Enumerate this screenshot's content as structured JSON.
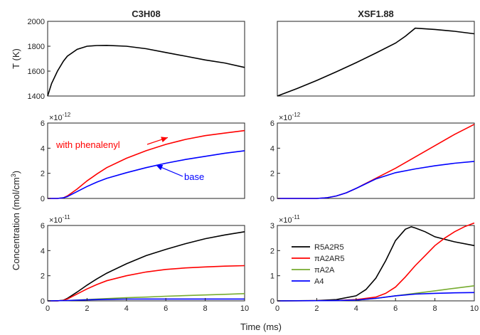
{
  "chart_data": [
    {
      "type": "line",
      "title": "C3H08",
      "ylabel": "T (K)",
      "xlim": [
        0,
        10
      ],
      "ylim": [
        1400,
        2000
      ],
      "yticks": [
        1400,
        1600,
        1800,
        2000
      ],
      "grid": false,
      "series": [
        {
          "color": "#000000",
          "x": [
            0,
            0.2,
            0.5,
            0.8,
            1,
            1.5,
            2,
            2.5,
            3,
            4,
            5,
            6,
            7,
            8,
            9,
            10
          ],
          "y": [
            1400,
            1500,
            1600,
            1680,
            1720,
            1775,
            1800,
            1806,
            1807,
            1800,
            1780,
            1750,
            1720,
            1690,
            1665,
            1630
          ]
        }
      ]
    },
    {
      "type": "line",
      "title": "XSF1.88",
      "ylabel": "",
      "xlim": [
        0,
        10
      ],
      "ylim": [
        1400,
        2000
      ],
      "grid": false,
      "series": [
        {
          "color": "#000000",
          "x": [
            0,
            1,
            2,
            3,
            4,
            5,
            6,
            6.5,
            7,
            8,
            9,
            10
          ],
          "y": [
            1400,
            1460,
            1525,
            1595,
            1668,
            1745,
            1825,
            1880,
            1945,
            1935,
            1920,
            1900
          ]
        }
      ]
    },
    {
      "type": "line",
      "ylabel": "",
      "exponent": "-12",
      "xlim": [
        0,
        10
      ],
      "ylim": [
        0,
        6
      ],
      "yticks": [
        0,
        2,
        4,
        6
      ],
      "grid": false,
      "annotations": [
        {
          "text": "with phenalenyl",
          "color": "#ff0000",
          "arrow_to": [
            6.1,
            4.85
          ]
        },
        {
          "text": "base",
          "color": "#0000ff",
          "arrow_to": [
            5.5,
            2.65
          ]
        }
      ],
      "series": [
        {
          "color": "#ff0000",
          "x": [
            0,
            0.5,
            0.8,
            1,
            1.5,
            2,
            2.5,
            3,
            4,
            5,
            6,
            7,
            8,
            9,
            10
          ],
          "y": [
            0,
            0,
            0.05,
            0.2,
            0.75,
            1.4,
            1.95,
            2.45,
            3.2,
            3.8,
            4.3,
            4.7,
            5.0,
            5.2,
            5.4
          ]
        },
        {
          "color": "#0000ff",
          "x": [
            0,
            0.5,
            0.8,
            1,
            1.5,
            2,
            2.5,
            3,
            4,
            5,
            6,
            7,
            8,
            9,
            10
          ],
          "y": [
            0,
            0,
            0.05,
            0.15,
            0.55,
            0.95,
            1.3,
            1.6,
            2.05,
            2.45,
            2.8,
            3.1,
            3.35,
            3.6,
            3.8
          ]
        }
      ]
    },
    {
      "type": "line",
      "ylabel": "",
      "exponent": "-12",
      "xlim": [
        0,
        10
      ],
      "ylim": [
        0,
        6
      ],
      "yticks": [
        0,
        2,
        4,
        6
      ],
      "grid": false,
      "series": [
        {
          "color": "#ff0000",
          "x": [
            0,
            2,
            2.5,
            3,
            3.5,
            4,
            5,
            6,
            7,
            8,
            9,
            10
          ],
          "y": [
            0,
            0,
            0.05,
            0.2,
            0.45,
            0.8,
            1.6,
            2.4,
            3.3,
            4.2,
            5.1,
            5.9
          ]
        },
        {
          "color": "#0000ff",
          "x": [
            0,
            2,
            2.5,
            3,
            3.5,
            4,
            5,
            6,
            7,
            8,
            9,
            10
          ],
          "y": [
            0,
            0,
            0.05,
            0.2,
            0.45,
            0.8,
            1.55,
            2.05,
            2.35,
            2.6,
            2.8,
            2.95
          ]
        }
      ]
    },
    {
      "type": "line",
      "ylabel": "",
      "exponent": "-11",
      "xlim": [
        0,
        10
      ],
      "xticks": [
        0,
        2,
        4,
        6,
        8,
        10
      ],
      "ylim": [
        0,
        6
      ],
      "yticks": [
        0,
        2,
        4,
        6
      ],
      "grid": false,
      "series": [
        {
          "color": "#000000",
          "x": [
            0,
            0.5,
            0.8,
            1,
            1.5,
            2,
            2.5,
            3,
            4,
            5,
            6,
            7,
            8,
            9,
            10
          ],
          "y": [
            0,
            0,
            0.05,
            0.2,
            0.7,
            1.25,
            1.75,
            2.2,
            2.95,
            3.6,
            4.1,
            4.55,
            4.95,
            5.25,
            5.5
          ]
        },
        {
          "color": "#ff0000",
          "x": [
            0,
            0.5,
            0.8,
            1,
            1.5,
            2,
            2.5,
            3,
            4,
            5,
            6,
            7,
            8,
            9,
            10
          ],
          "y": [
            0,
            0,
            0.04,
            0.15,
            0.55,
            0.95,
            1.3,
            1.6,
            2.0,
            2.3,
            2.5,
            2.62,
            2.7,
            2.76,
            2.8
          ]
        },
        {
          "color": "#77ac30",
          "x": [
            0,
            1,
            2,
            3,
            4,
            5,
            6,
            7,
            8,
            9,
            10
          ],
          "y": [
            0,
            0.03,
            0.1,
            0.18,
            0.25,
            0.3,
            0.37,
            0.42,
            0.47,
            0.52,
            0.58
          ]
        },
        {
          "color": "#0000ff",
          "x": [
            0,
            1,
            2,
            3,
            4,
            5,
            6,
            7,
            8,
            9,
            10
          ],
          "y": [
            0,
            0.03,
            0.08,
            0.12,
            0.14,
            0.15,
            0.15,
            0.15,
            0.15,
            0.15,
            0.15
          ]
        }
      ]
    },
    {
      "type": "line",
      "ylabel": "",
      "exponent": "-11",
      "xlim": [
        0,
        10
      ],
      "xticks": [
        0,
        2,
        4,
        6,
        8,
        10
      ],
      "ylim": [
        0,
        3
      ],
      "yticks": [
        0,
        1,
        2,
        3
      ],
      "grid": false,
      "legend": "center",
      "series": [
        {
          "name": "R5A2R5",
          "color": "#000000",
          "x": [
            0,
            2,
            3,
            4,
            4.5,
            5,
            5.5,
            6,
            6.5,
            6.8,
            7,
            7.5,
            8,
            9,
            10
          ],
          "y": [
            0,
            0.01,
            0.05,
            0.2,
            0.45,
            0.9,
            1.6,
            2.4,
            2.85,
            2.95,
            2.9,
            2.75,
            2.55,
            2.35,
            2.2
          ]
        },
        {
          "name": "πA2AR5",
          "color": "#ff0000",
          "x": [
            0,
            3,
            4,
            5,
            5.5,
            6,
            6.5,
            7,
            7.5,
            8,
            8.5,
            9,
            9.5,
            10
          ],
          "y": [
            0,
            0.01,
            0.05,
            0.15,
            0.3,
            0.55,
            0.95,
            1.4,
            1.8,
            2.2,
            2.5,
            2.75,
            2.95,
            3.1
          ]
        },
        {
          "name": "πA2A",
          "color": "#77ac30",
          "x": [
            0,
            3,
            4,
            5,
            6,
            7,
            8,
            9,
            10
          ],
          "y": [
            0,
            0.01,
            0.03,
            0.1,
            0.2,
            0.3,
            0.4,
            0.5,
            0.6
          ]
        },
        {
          "name": "A4",
          "color": "#0000ff",
          "x": [
            0,
            3,
            4,
            5,
            6,
            7,
            8,
            9,
            10
          ],
          "y": [
            0,
            0.01,
            0.03,
            0.1,
            0.2,
            0.27,
            0.3,
            0.32,
            0.33
          ]
        }
      ]
    }
  ],
  "labels": {
    "shared_ylabel": "Concentration (mol/cm",
    "shared_ylabel_sup": "3",
    "shared_ylabel_end": ")",
    "xlabel": "Time (ms)",
    "exp_base": "×10"
  }
}
